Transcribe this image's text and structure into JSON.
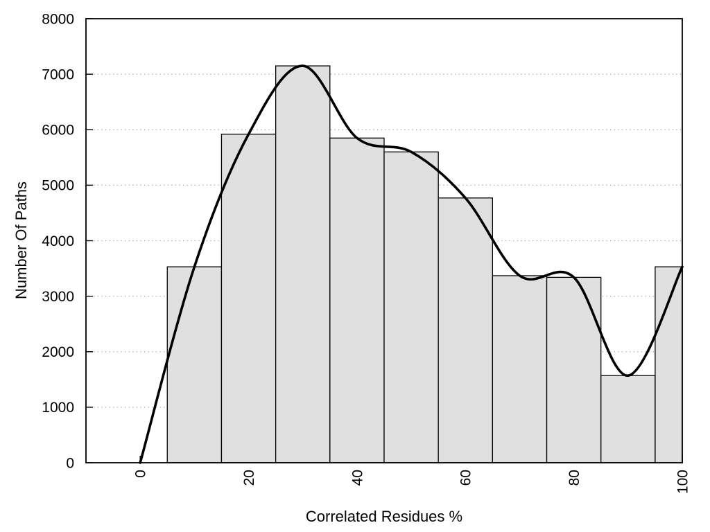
{
  "chart_data": {
    "type": "bar",
    "subtype": "histogram-with-smooth-curve",
    "title": "",
    "xlabel": "Correlated Residues %",
    "ylabel": "Number Of Paths",
    "x": [
      0,
      10,
      20,
      30,
      40,
      50,
      60,
      70,
      80,
      90,
      100
    ],
    "series": [
      {
        "name": "histogram-bars",
        "type": "bar",
        "bin_width": 10,
        "values": [
          0,
          3530,
          5920,
          7150,
          5850,
          5600,
          4770,
          3370,
          3340,
          1570,
          3530
        ]
      },
      {
        "name": "smooth-curve",
        "type": "spline",
        "values": [
          0,
          3530,
          5920,
          7150,
          5850,
          5600,
          4770,
          3370,
          3340,
          1570,
          3530
        ]
      }
    ],
    "xlim": [
      -10,
      100
    ],
    "ylim": [
      0,
      8000
    ],
    "x_tick_values": [
      0,
      20,
      40,
      60,
      80,
      100
    ],
    "x_tick_labels": [
      "0",
      "20",
      "40",
      "60",
      "80",
      "100"
    ],
    "x_tick_rotation_deg": -90,
    "y_tick_values": [
      0,
      1000,
      2000,
      3000,
      4000,
      5000,
      6000,
      7000,
      8000
    ],
    "y_tick_labels": [
      "0",
      "1000",
      "2000",
      "3000",
      "4000",
      "5000",
      "6000",
      "7000",
      "8000"
    ],
    "grid": {
      "horizontal": true,
      "vertical": false,
      "style": "dotted"
    },
    "legend": "none",
    "colors": {
      "background": "#ffffff",
      "bar_fill": "#e0e0e0",
      "bar_border": "#000000",
      "curve": "#000000",
      "grid": "#ababab",
      "axis": "#000000",
      "text": "#000000"
    }
  }
}
